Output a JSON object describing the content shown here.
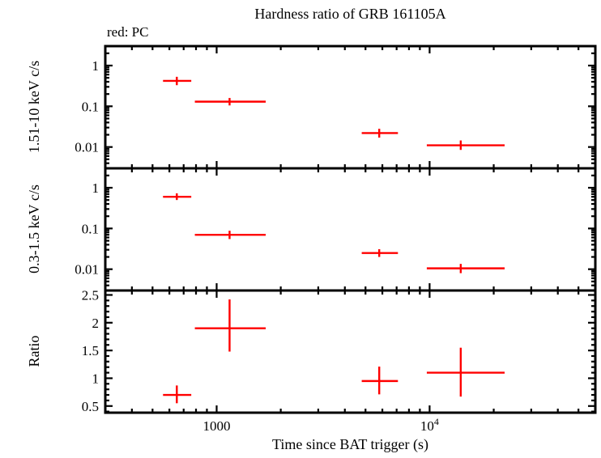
{
  "chart_data": {
    "type": "scatter",
    "title": "Hardness ratio of GRB 161105A",
    "annotation": "red: PC",
    "xlabel": "Time since BAT trigger (s)",
    "xscale": "log",
    "xlim": [
      300,
      60000
    ],
    "xticks": [
      {
        "value": 1000,
        "label": "1000"
      },
      {
        "value": 10000,
        "label": "10^4"
      }
    ],
    "series_color": "#ff0000",
    "frame_color": "#000000",
    "panels": [
      {
        "ylabel": "1.51-10 keV c/s",
        "yscale": "log",
        "ylim": [
          0.003,
          3
        ],
        "yticks": [
          {
            "value": 1,
            "label": "1"
          },
          {
            "value": 0.1,
            "label": "0.1"
          },
          {
            "value": 0.01,
            "label": "0.01"
          }
        ],
        "points": [
          {
            "x": 650,
            "xlo": 560,
            "xhi": 760,
            "y": 0.42,
            "ylo": 0.33,
            "yhi": 0.53
          },
          {
            "x": 1150,
            "xlo": 790,
            "xhi": 1700,
            "y": 0.13,
            "ylo": 0.105,
            "yhi": 0.16
          },
          {
            "x": 5800,
            "xlo": 4800,
            "xhi": 7100,
            "y": 0.022,
            "ylo": 0.017,
            "yhi": 0.028
          },
          {
            "x": 14000,
            "xlo": 9700,
            "xhi": 22500,
            "y": 0.011,
            "ylo": 0.0085,
            "yhi": 0.0145
          }
        ]
      },
      {
        "ylabel": "0.3-1.5 keV c/s",
        "yscale": "log",
        "ylim": [
          0.003,
          3
        ],
        "yticks": [
          {
            "value": 1,
            "label": "1"
          },
          {
            "value": 0.1,
            "label": "0.1"
          },
          {
            "value": 0.01,
            "label": "0.01"
          }
        ],
        "points": [
          {
            "x": 650,
            "xlo": 560,
            "xhi": 760,
            "y": 0.6,
            "ylo": 0.5,
            "yhi": 0.73
          },
          {
            "x": 1150,
            "xlo": 790,
            "xhi": 1700,
            "y": 0.07,
            "ylo": 0.055,
            "yhi": 0.088
          },
          {
            "x": 5800,
            "xlo": 4800,
            "xhi": 7100,
            "y": 0.025,
            "ylo": 0.02,
            "yhi": 0.031
          },
          {
            "x": 14000,
            "xlo": 9700,
            "xhi": 22500,
            "y": 0.0105,
            "ylo": 0.008,
            "yhi": 0.0135
          }
        ]
      },
      {
        "ylabel": "Ratio",
        "yscale": "linear",
        "ylim": [
          0.38,
          2.58
        ],
        "yticks": [
          {
            "value": 2.5,
            "label": "2.5"
          },
          {
            "value": 2,
            "label": "2"
          },
          {
            "value": 1.5,
            "label": "1.5"
          },
          {
            "value": 1,
            "label": "1"
          },
          {
            "value": 0.5,
            "label": "0.5"
          }
        ],
        "points": [
          {
            "x": 650,
            "xlo": 560,
            "xhi": 760,
            "y": 0.7,
            "ylo": 0.55,
            "yhi": 0.87
          },
          {
            "x": 1150,
            "xlo": 790,
            "xhi": 1700,
            "y": 1.9,
            "ylo": 1.48,
            "yhi": 2.42
          },
          {
            "x": 5800,
            "xlo": 4800,
            "xhi": 7100,
            "y": 0.95,
            "ylo": 0.71,
            "yhi": 1.21
          },
          {
            "x": 14000,
            "xlo": 9700,
            "xhi": 22500,
            "y": 1.1,
            "ylo": 0.67,
            "yhi": 1.55
          }
        ]
      }
    ]
  }
}
